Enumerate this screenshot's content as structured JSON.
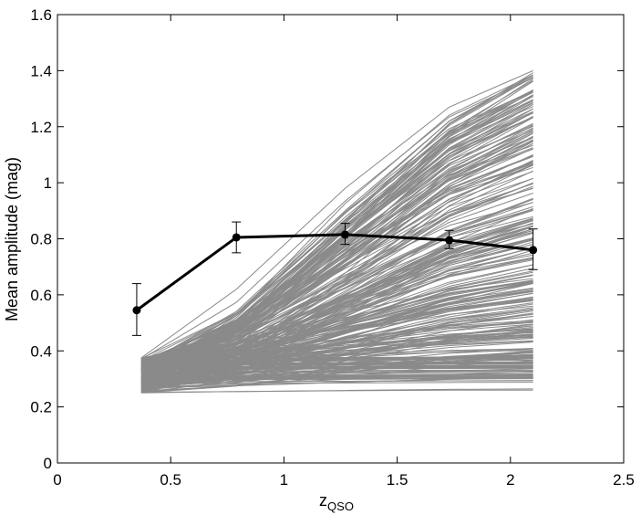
{
  "chart_data": {
    "type": "line",
    "title": "",
    "xlabel": "z",
    "xlabel_subscript": "QSO",
    "ylabel": "Mean amplitude (mag)",
    "xlim": [
      0,
      2.5
    ],
    "ylim": [
      0,
      1.6
    ],
    "xticks": [
      "0",
      "0.5",
      "1",
      "1.5",
      "2",
      "2.5"
    ],
    "yticks": [
      "0",
      "0.2",
      "0.4",
      "0.6",
      "0.8",
      "1",
      "1.2",
      "1.4",
      "1.6"
    ],
    "grid": false,
    "legend": "none",
    "series": [
      {
        "x": [
          0.35,
          0.79,
          1.27,
          1.73,
          2.1
        ],
        "y": [
          0.545,
          0.805,
          0.815,
          0.795,
          0.76
        ],
        "err_low": [
          0.455,
          0.75,
          0.78,
          0.765,
          0.69
        ],
        "err_high": [
          0.64,
          0.86,
          0.855,
          0.83,
          0.835
        ],
        "color": "#000000",
        "marker": "circle"
      }
    ],
    "background_lines": {
      "color": "#8a8a8a",
      "count": 300,
      "x": [
        0.37,
        0.79,
        1.27,
        1.73,
        2.1
      ],
      "start_y_range": [
        0.25,
        0.375
      ],
      "end_y_range": [
        0.26,
        1.4
      ],
      "example_max": [
        0.375,
        0.62,
        0.98,
        1.27,
        1.4
      ],
      "example_min": [
        0.25,
        0.255,
        0.258,
        0.26,
        0.26
      ]
    }
  }
}
